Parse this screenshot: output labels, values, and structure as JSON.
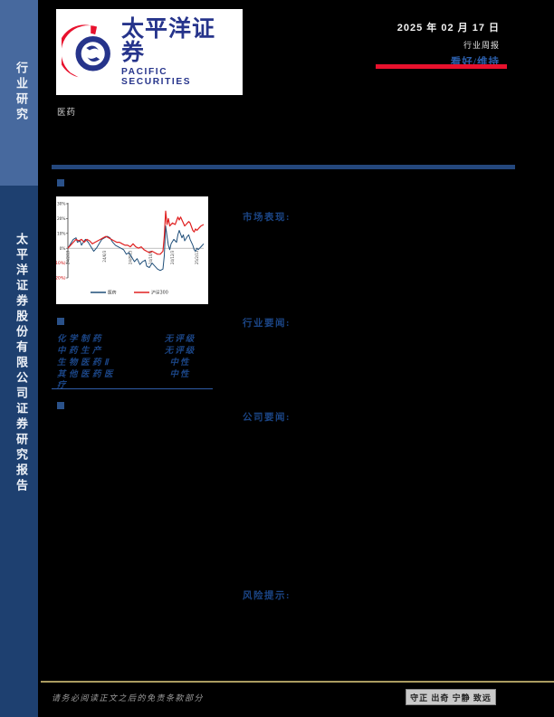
{
  "header": {
    "date": "2025 年 02 月 17 日",
    "report_type": "行业周报",
    "rating": "看好/维持",
    "industry": "医药"
  },
  "sidebar": {
    "top_label": "行业研究",
    "bottom_label": "太平洋证券股份有限公司证券研究报告"
  },
  "logo": {
    "name_cn": "太平洋证券",
    "name_en": "PACIFIC SECURITIES"
  },
  "sections": {
    "market": "市场表现:",
    "industry_news": "行业要闻:",
    "company_news": "公司要闻:",
    "risk": "风险提示:"
  },
  "ratings_table": {
    "rows": [
      {
        "name": "化学制药",
        "rating": "无评级"
      },
      {
        "name": "中药生产",
        "rating": "无评级"
      },
      {
        "name": "生物医药Ⅱ",
        "rating": "中性"
      },
      {
        "name": "其他医药医疗",
        "rating": "中性"
      }
    ]
  },
  "footer": {
    "disclaimer": "请务必阅读正文之后的免责条款部分",
    "motto": "守正 出奇 宁静 致远"
  },
  "colors": {
    "sidebar_top": "#47699e",
    "sidebar_bottom": "#1e4070",
    "accent_blue": "#1b4585",
    "rating_blue": "#2b5eaa",
    "brand_red": "#e8112d",
    "logo_blue": "#26348b",
    "gold_line": "#ab9b60",
    "series_pharma": "#1f4e79",
    "series_hs300": "#e02020"
  },
  "chart_data": {
    "type": "line",
    "title": "",
    "xlabel": "",
    "ylabel": "",
    "ylim": [
      -20,
      30
    ],
    "grid": false,
    "legend_position": "bottom",
    "y_ticks": [
      {
        "v": 30,
        "label": "30%",
        "color": "#333333"
      },
      {
        "v": 20,
        "label": "20%",
        "color": "#333333"
      },
      {
        "v": 10,
        "label": "10%",
        "color": "#333333"
      },
      {
        "v": 0,
        "label": "0%",
        "color": "#333333"
      },
      {
        "v": -10,
        "label": "(10%)",
        "color": "#cc0000"
      },
      {
        "v": -20,
        "label": "(20%)",
        "color": "#cc0000"
      }
    ],
    "x_ticks": [
      {
        "f": 0.01,
        "label": "24/2/19"
      },
      {
        "f": 0.28,
        "label": "24/6/3"
      },
      {
        "f": 0.47,
        "label": "24/8/13"
      },
      {
        "f": 0.62,
        "label": "24/10/8"
      },
      {
        "f": 0.78,
        "label": "24/12/3"
      },
      {
        "f": 0.96,
        "label": "25/2/13"
      }
    ],
    "series": [
      {
        "name": "医药",
        "color": "#1f4e79",
        "points": [
          [
            0,
            0
          ],
          [
            0.02,
            3
          ],
          [
            0.04,
            6
          ],
          [
            0.06,
            7
          ],
          [
            0.07,
            4
          ],
          [
            0.09,
            5
          ],
          [
            0.1,
            2
          ],
          [
            0.12,
            5
          ],
          [
            0.13,
            6
          ],
          [
            0.15,
            4
          ],
          [
            0.17,
            1
          ],
          [
            0.19,
            -2
          ],
          [
            0.21,
            0
          ],
          [
            0.23,
            3
          ],
          [
            0.25,
            6
          ],
          [
            0.27,
            7
          ],
          [
            0.29,
            8
          ],
          [
            0.31,
            7
          ],
          [
            0.33,
            4
          ],
          [
            0.35,
            2
          ],
          [
            0.37,
            1
          ],
          [
            0.39,
            0
          ],
          [
            0.41,
            -1
          ],
          [
            0.43,
            -4
          ],
          [
            0.45,
            -3
          ],
          [
            0.47,
            -6
          ],
          [
            0.49,
            -9
          ],
          [
            0.51,
            -7
          ],
          [
            0.53,
            -11
          ],
          [
            0.55,
            -9
          ],
          [
            0.57,
            -8
          ],
          [
            0.58,
            -12
          ],
          [
            0.6,
            -13
          ],
          [
            0.62,
            -10
          ],
          [
            0.64,
            -12
          ],
          [
            0.66,
            -14
          ],
          [
            0.68,
            -15
          ],
          [
            0.7,
            -14
          ],
          [
            0.71,
            -5
          ],
          [
            0.72,
            15
          ],
          [
            0.73,
            8
          ],
          [
            0.74,
            2
          ],
          [
            0.75,
            -1
          ],
          [
            0.76,
            3
          ],
          [
            0.78,
            6
          ],
          [
            0.8,
            4
          ],
          [
            0.81,
            9
          ],
          [
            0.82,
            12
          ],
          [
            0.84,
            7
          ],
          [
            0.85,
            9
          ],
          [
            0.86,
            5
          ],
          [
            0.88,
            8
          ],
          [
            0.89,
            9
          ],
          [
            0.9,
            6
          ],
          [
            0.92,
            2
          ],
          [
            0.93,
            -1
          ],
          [
            0.94,
            -2
          ],
          [
            0.95,
            0
          ],
          [
            0.96,
            -1
          ],
          [
            0.97,
            0
          ],
          [
            0.98,
            1
          ],
          [
            1.0,
            3
          ]
        ]
      },
      {
        "name": "沪深300",
        "color": "#e02020",
        "points": [
          [
            0,
            0
          ],
          [
            0.02,
            2
          ],
          [
            0.04,
            4
          ],
          [
            0.06,
            6
          ],
          [
            0.08,
            5
          ],
          [
            0.1,
            6
          ],
          [
            0.12,
            4
          ],
          [
            0.14,
            6
          ],
          [
            0.16,
            5
          ],
          [
            0.18,
            3
          ],
          [
            0.2,
            4
          ],
          [
            0.22,
            5
          ],
          [
            0.24,
            6
          ],
          [
            0.26,
            7
          ],
          [
            0.28,
            8
          ],
          [
            0.3,
            7
          ],
          [
            0.32,
            6
          ],
          [
            0.34,
            5
          ],
          [
            0.36,
            4
          ],
          [
            0.38,
            4
          ],
          [
            0.4,
            3
          ],
          [
            0.42,
            2
          ],
          [
            0.44,
            2
          ],
          [
            0.46,
            1
          ],
          [
            0.48,
            3
          ],
          [
            0.5,
            1
          ],
          [
            0.52,
            0
          ],
          [
            0.54,
            1
          ],
          [
            0.56,
            -1
          ],
          [
            0.58,
            -2
          ],
          [
            0.6,
            -3
          ],
          [
            0.62,
            -2
          ],
          [
            0.64,
            -3
          ],
          [
            0.66,
            -4
          ],
          [
            0.68,
            -4
          ],
          [
            0.7,
            -2
          ],
          [
            0.71,
            8
          ],
          [
            0.72,
            25
          ],
          [
            0.73,
            16
          ],
          [
            0.74,
            20
          ],
          [
            0.75,
            15
          ],
          [
            0.77,
            17
          ],
          [
            0.79,
            16
          ],
          [
            0.81,
            21
          ],
          [
            0.82,
            19
          ],
          [
            0.83,
            21
          ],
          [
            0.85,
            17
          ],
          [
            0.86,
            15
          ],
          [
            0.87,
            16
          ],
          [
            0.89,
            18
          ],
          [
            0.9,
            17
          ],
          [
            0.92,
            12
          ],
          [
            0.93,
            11
          ],
          [
            0.94,
            13
          ],
          [
            0.95,
            12
          ],
          [
            0.97,
            14
          ],
          [
            0.98,
            15
          ],
          [
            1.0,
            16
          ]
        ]
      }
    ]
  }
}
